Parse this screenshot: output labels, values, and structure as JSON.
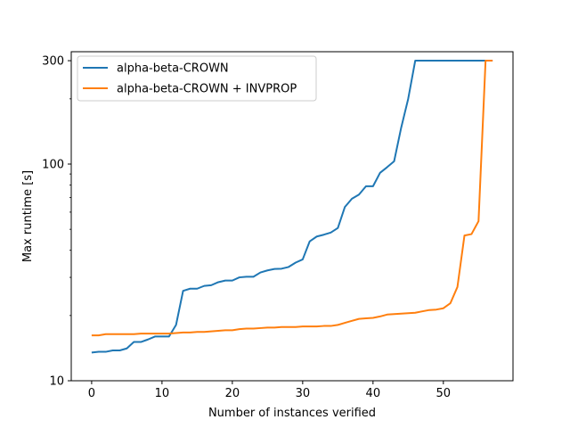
{
  "chart_data": {
    "type": "line",
    "title": "",
    "xlabel": "Number of instances verified",
    "ylabel": "Max runtime [s]",
    "xlim": [
      -2.9,
      59.9
    ],
    "ylim": [
      10,
      330
    ],
    "yscale": "log",
    "xticks": [
      0,
      10,
      20,
      30,
      40,
      50
    ],
    "yticks": [
      10,
      100,
      300
    ],
    "grid": false,
    "legend_position": "top-left",
    "series": [
      {
        "name": "alpha-beta-CROWN",
        "color": "#1f77b4",
        "x": [
          0,
          1,
          2,
          3,
          4,
          5,
          6,
          7,
          8,
          9,
          10,
          11,
          12,
          13,
          14,
          15,
          16,
          17,
          18,
          19,
          20,
          21,
          22,
          23,
          24,
          25,
          26,
          27,
          28,
          29,
          30,
          31,
          32,
          33,
          34,
          35,
          36,
          37,
          38,
          39,
          40,
          41,
          42,
          43,
          44,
          45,
          46,
          47,
          48,
          49,
          50,
          51,
          52,
          53,
          54,
          55,
          56,
          57
        ],
        "y": [
          13.5,
          13.6,
          13.6,
          13.8,
          13.8,
          14.1,
          15.1,
          15.1,
          15.5,
          16.0,
          16.0,
          16.0,
          18.1,
          26.0,
          26.6,
          26.6,
          27.4,
          27.6,
          28.5,
          29.0,
          29.0,
          30.0,
          30.2,
          30.2,
          31.6,
          32.3,
          32.8,
          32.9,
          33.5,
          35.1,
          36.3,
          44.0,
          46.3,
          47.2,
          48.3,
          50.7,
          63.4,
          69.2,
          72.3,
          79.0,
          79.0,
          91.1,
          96.7,
          103.0,
          147.0,
          200.0,
          300.0,
          300.0,
          300.0,
          300.0,
          300.0,
          300.0,
          300.0,
          300.0,
          300.0,
          300.0,
          300.0,
          300.0
        ]
      },
      {
        "name": "alpha-beta-CROWN + INVPROP",
        "color": "#ff7f0e",
        "x": [
          0,
          1,
          2,
          3,
          4,
          5,
          6,
          7,
          8,
          9,
          10,
          11,
          12,
          13,
          14,
          15,
          16,
          17,
          18,
          19,
          20,
          21,
          22,
          23,
          24,
          25,
          26,
          27,
          28,
          29,
          30,
          31,
          32,
          33,
          34,
          35,
          36,
          37,
          38,
          39,
          40,
          41,
          42,
          43,
          44,
          45,
          46,
          47,
          48,
          49,
          50,
          51,
          52,
          53,
          54,
          55,
          56,
          57
        ],
        "y": [
          16.2,
          16.2,
          16.4,
          16.4,
          16.4,
          16.4,
          16.4,
          16.5,
          16.5,
          16.5,
          16.5,
          16.5,
          16.6,
          16.7,
          16.7,
          16.8,
          16.8,
          16.9,
          17.0,
          17.1,
          17.1,
          17.3,
          17.4,
          17.4,
          17.5,
          17.6,
          17.6,
          17.7,
          17.7,
          17.7,
          17.8,
          17.8,
          17.8,
          17.9,
          17.9,
          18.1,
          18.5,
          18.9,
          19.3,
          19.4,
          19.5,
          19.8,
          20.2,
          20.3,
          20.4,
          20.5,
          20.6,
          20.9,
          21.2,
          21.3,
          21.6,
          22.8,
          27.1,
          46.8,
          47.5,
          54.5,
          300.0,
          300.0
        ]
      }
    ]
  }
}
